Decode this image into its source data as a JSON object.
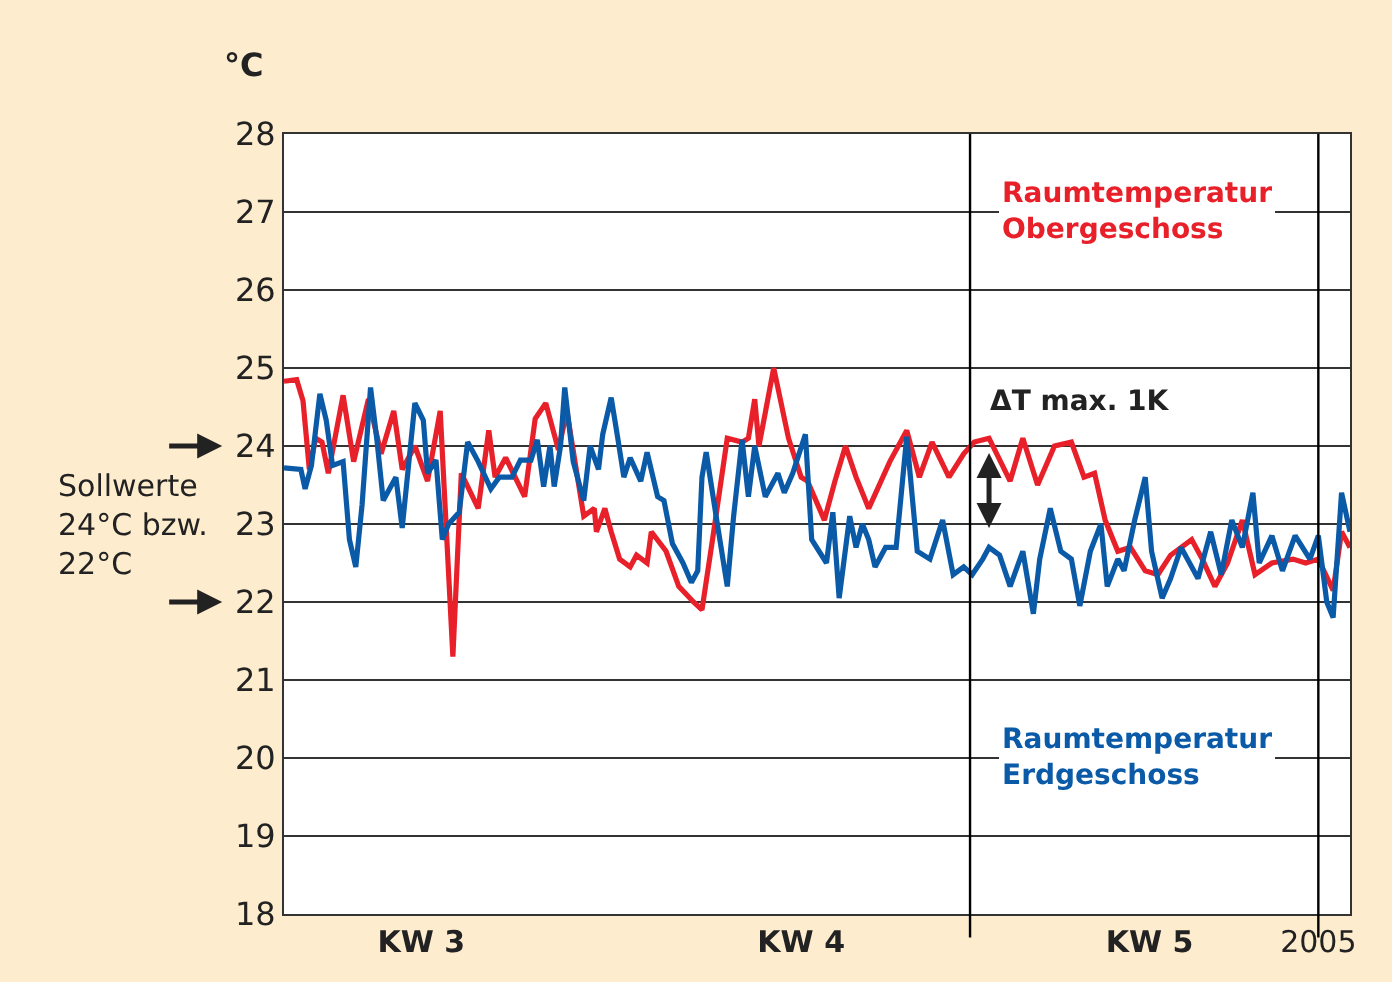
{
  "chart_data": {
    "type": "line",
    "ylabel": "°C",
    "xlim": [
      "2005-01-17T00:00",
      "2005-02-07T01:00"
    ],
    "xticks": [
      {
        "value": "2005-01-19T17:00",
        "label": "KW 3"
      },
      {
        "value": "2005-01-27T05:00",
        "label": "KW 4"
      },
      {
        "value": "2005-02-03T02:00",
        "label": "KW 5"
      },
      {
        "value": "2005-02-06T10:00",
        "label": "2005"
      }
    ],
    "ylim": [
      18,
      28
    ],
    "yticks": [
      18,
      19,
      20,
      21,
      22,
      23,
      24,
      25,
      26,
      27,
      28
    ],
    "grid": "y",
    "legend": false,
    "marker": "none",
    "line_style": "solid",
    "ref_lines": [
      {
        "axis": "x",
        "value": "2005-01-30T13:00",
        "color": "#000000"
      },
      {
        "axis": "x",
        "value": "2005-02-06T10:00",
        "color": "#000000"
      }
    ],
    "annotations": [
      "Sollwerte\n24°C bzw.\n22°C",
      {
        "text": "ΔT max. 1K",
        "x": "2005-01-30T22:00",
        "y": 24.0
      }
    ],
    "series": [
      {
        "name": "Raumtemperatur\nObergeschoss",
        "color": "#e8202a",
        "x": [
          "2005-01-17T00:00",
          "2005-01-17T06:00",
          "2005-01-17T09:00",
          "2005-01-17T12:00",
          "2005-01-17T15:00",
          "2005-01-17T18:00",
          "2005-01-17T21:00",
          "2005-01-18T04:00",
          "2005-01-18T09:00",
          "2005-01-18T16:00",
          "2005-01-18T22:00",
          "2005-01-19T04:00",
          "2005-01-19T08:00",
          "2005-01-19T14:00",
          "2005-01-19T20:00",
          "2005-01-20T02:00",
          "2005-01-20T08:00",
          "2005-01-20T12:00",
          "2005-01-20T20:00",
          "2005-01-21T01:00",
          "2005-01-21T04:00",
          "2005-01-21T09:00",
          "2005-01-21T18:00",
          "2005-01-21T23:00",
          "2005-01-22T04:00",
          "2005-01-22T10:00",
          "2005-01-22T14:00",
          "2005-01-22T22:00",
          "2005-01-23T03:00",
          "2005-01-23T04:00",
          "2005-01-23T08:00",
          "2005-01-23T11:00",
          "2005-01-23T15:00",
          "2005-01-23T20:00",
          "2005-01-23T23:00",
          "2005-01-24T04:00",
          "2005-01-24T06:00",
          "2005-01-24T13:00",
          "2005-01-24T19:00",
          "2005-01-25T02:00",
          "2005-01-25T06:00",
          "2005-01-25T11:00",
          "2005-01-25T18:00",
          "2005-01-26T01:00",
          "2005-01-26T04:00",
          "2005-01-26T07:00",
          "2005-01-26T09:00",
          "2005-01-26T16:00",
          "2005-01-26T23:00",
          "2005-01-27T05:00",
          "2005-01-27T08:00",
          "2005-01-27T16:00",
          "2005-01-27T21:00",
          "2005-01-28T02:00",
          "2005-01-28T07:00",
          "2005-01-28T13:00",
          "2005-01-28T23:00",
          "2005-01-29T07:00",
          "2005-01-29T13:00",
          "2005-01-29T19:00",
          "2005-01-30T03:00",
          "2005-01-30T10:00",
          "2005-01-30T15:00",
          "2005-01-30T22:00",
          "2005-01-31T08:00",
          "2005-01-31T14:00",
          "2005-01-31T21:00",
          "2005-02-01T05:00",
          "2005-02-01T13:00",
          "2005-02-01T19:00",
          "2005-02-02T00:00",
          "2005-02-02T05:00",
          "2005-02-02T11:00",
          "2005-02-02T17:00",
          "2005-02-03T00:00",
          "2005-02-03T06:00",
          "2005-02-03T12:00",
          "2005-02-03T22:00",
          "2005-02-04T03:00",
          "2005-02-04T09:00",
          "2005-02-04T15:00",
          "2005-02-04T22:00",
          "2005-02-05T04:00",
          "2005-02-05T12:00",
          "2005-02-05T22:00",
          "2005-02-06T04:00",
          "2005-02-06T10:00",
          "2005-02-06T17:00",
          "2005-02-06T21:00",
          "2005-02-07T01:00"
        ],
        "values": [
          24.83,
          24.85,
          24.58,
          23.7,
          24.1,
          24.05,
          23.65,
          24.65,
          23.8,
          24.6,
          23.9,
          24.45,
          23.7,
          24.0,
          23.55,
          24.45,
          21.3,
          23.65,
          23.2,
          24.2,
          23.6,
          23.85,
          23.35,
          24.35,
          24.55,
          23.95,
          24.45,
          23.1,
          23.2,
          22.9,
          23.2,
          22.9,
          22.55,
          22.45,
          22.6,
          22.5,
          22.9,
          22.65,
          22.2,
          22.0,
          21.9,
          22.8,
          24.1,
          24.05,
          24.1,
          24.6,
          24.0,
          25.0,
          24.1,
          23.6,
          23.55,
          23.05,
          23.55,
          24.0,
          23.6,
          23.2,
          23.8,
          24.2,
          23.6,
          24.05,
          23.6,
          23.9,
          24.05,
          24.1,
          23.55,
          24.1,
          23.5,
          24.0,
          24.05,
          23.6,
          23.65,
          23.05,
          22.65,
          22.7,
          22.4,
          22.35,
          22.6,
          22.8,
          22.55,
          22.2,
          22.5,
          23.05,
          22.35,
          22.5,
          22.55,
          22.5,
          22.55,
          22.15,
          22.9,
          22.7
        ]
      },
      {
        "name": "Raumtemperatur\nErdgeschoss",
        "color": "#0b5aa8",
        "x": [
          "2005-01-17T00:00",
          "2005-01-17T08:00",
          "2005-01-17T10:00",
          "2005-01-17T13:00",
          "2005-01-17T17:00",
          "2005-01-17T20:00",
          "2005-01-17T23:00",
          "2005-01-18T04:00",
          "2005-01-18T07:00",
          "2005-01-18T10:00",
          "2005-01-18T13:00",
          "2005-01-18T17:00",
          "2005-01-18T20:00",
          "2005-01-18T23:00",
          "2005-01-19T05:00",
          "2005-01-19T08:00",
          "2005-01-19T14:00",
          "2005-01-19T18:00",
          "2005-01-19T20:00",
          "2005-01-20T00:00",
          "2005-01-20T03:00",
          "2005-01-20T06:00",
          "2005-01-20T11:00",
          "2005-01-20T15:00",
          "2005-01-20T20:00",
          "2005-01-21T02:00",
          "2005-01-21T06:00",
          "2005-01-21T12:00",
          "2005-01-21T16:00",
          "2005-01-21T21:00",
          "2005-01-22T00:00",
          "2005-01-22T03:00",
          "2005-01-22T06:00",
          "2005-01-22T08:00",
          "2005-01-22T11:00",
          "2005-01-22T13:00",
          "2005-01-22T17:00",
          "2005-01-22T22:00",
          "2005-01-23T01:00",
          "2005-01-23T05:00",
          "2005-01-23T07:00",
          "2005-01-23T11:00",
          "2005-01-23T14:00",
          "2005-01-23T17:00",
          "2005-01-23T20:00",
          "2005-01-24T01:00",
          "2005-01-24T04:00",
          "2005-01-24T09:00",
          "2005-01-24T12:00",
          "2005-01-24T16:00",
          "2005-01-24T21:00",
          "2005-01-25T01:00",
          "2005-01-25T04:00",
          "2005-01-25T06:00",
          "2005-01-25T08:00",
          "2005-01-25T13:00",
          "2005-01-25T18:00",
          "2005-01-25T21:00",
          "2005-01-26T01:00",
          "2005-01-26T04:00",
          "2005-01-26T07:00",
          "2005-01-26T12:00",
          "2005-01-26T18:00",
          "2005-01-26T21:00",
          "2005-01-27T01:00",
          "2005-01-27T07:00",
          "2005-01-27T10:00",
          "2005-01-27T17:00",
          "2005-01-27T20:00",
          "2005-01-27T23:00",
          "2005-01-28T04:00",
          "2005-01-28T07:00",
          "2005-01-28T10:00",
          "2005-01-28T13:00",
          "2005-01-28T16:00",
          "2005-01-28T21:00",
          "2005-01-29T02:00",
          "2005-01-29T07:00",
          "2005-01-29T12:00",
          "2005-01-29T18:00",
          "2005-01-30T00:00",
          "2005-01-30T05:00",
          "2005-01-30T10:00",
          "2005-01-30T14:00",
          "2005-01-30T19:00",
          "2005-01-30T22:00",
          "2005-01-31T03:00",
          "2005-01-31T08:00",
          "2005-01-31T14:00",
          "2005-01-31T19:00",
          "2005-01-31T22:00",
          "2005-02-01T03:00",
          "2005-02-01T08:00",
          "2005-02-01T13:00",
          "2005-02-01T17:00",
          "2005-02-01T22:00",
          "2005-02-02T03:00",
          "2005-02-02T06:00",
          "2005-02-02T11:00",
          "2005-02-02T14:00",
          "2005-02-02T19:00",
          "2005-02-03T00:00",
          "2005-02-03T03:00",
          "2005-02-03T08:00",
          "2005-02-03T12:00",
          "2005-02-03T17:00",
          "2005-02-04T01:00",
          "2005-02-04T07:00",
          "2005-02-04T12:00",
          "2005-02-04T17:00",
          "2005-02-04T22:00",
          "2005-02-05T03:00",
          "2005-02-05T06:00",
          "2005-02-05T12:00",
          "2005-02-05T17:00",
          "2005-02-05T23:00",
          "2005-02-06T06:00",
          "2005-02-06T10:00",
          "2005-02-06T14:00",
          "2005-02-06T17:00",
          "2005-02-06T21:00",
          "2005-02-07T01:00"
        ],
        "values": [
          23.72,
          23.7,
          23.45,
          23.75,
          24.67,
          24.33,
          23.75,
          23.8,
          22.8,
          22.45,
          23.25,
          24.75,
          24.08,
          23.3,
          23.6,
          22.95,
          24.55,
          24.33,
          23.65,
          23.82,
          22.8,
          23.0,
          23.15,
          24.05,
          23.8,
          23.45,
          23.6,
          23.6,
          23.82,
          23.82,
          24.08,
          23.48,
          24.0,
          23.48,
          24.0,
          24.75,
          23.8,
          23.3,
          24.0,
          23.7,
          24.15,
          24.62,
          24.12,
          23.6,
          23.85,
          23.55,
          23.92,
          23.35,
          23.3,
          22.75,
          22.5,
          22.25,
          22.4,
          23.6,
          23.92,
          23.05,
          22.2,
          23.1,
          24.08,
          23.35,
          24.0,
          23.35,
          23.65,
          23.4,
          23.65,
          24.15,
          22.8,
          22.5,
          23.15,
          22.05,
          23.1,
          22.7,
          23.0,
          22.8,
          22.45,
          22.7,
          22.7,
          24.12,
          22.65,
          22.55,
          23.05,
          22.35,
          22.45,
          22.35,
          22.55,
          22.7,
          22.6,
          22.2,
          22.65,
          21.85,
          22.55,
          23.2,
          22.65,
          22.55,
          21.95,
          22.65,
          23.0,
          22.2,
          22.55,
          22.4,
          23.05,
          23.6,
          22.65,
          22.05,
          22.3,
          22.7,
          22.3,
          22.9,
          22.35,
          23.05,
          22.7,
          23.4,
          22.5,
          22.85,
          22.4,
          22.85,
          22.55,
          22.85,
          22.0,
          21.8,
          23.4,
          22.9
        ]
      }
    ]
  }
}
